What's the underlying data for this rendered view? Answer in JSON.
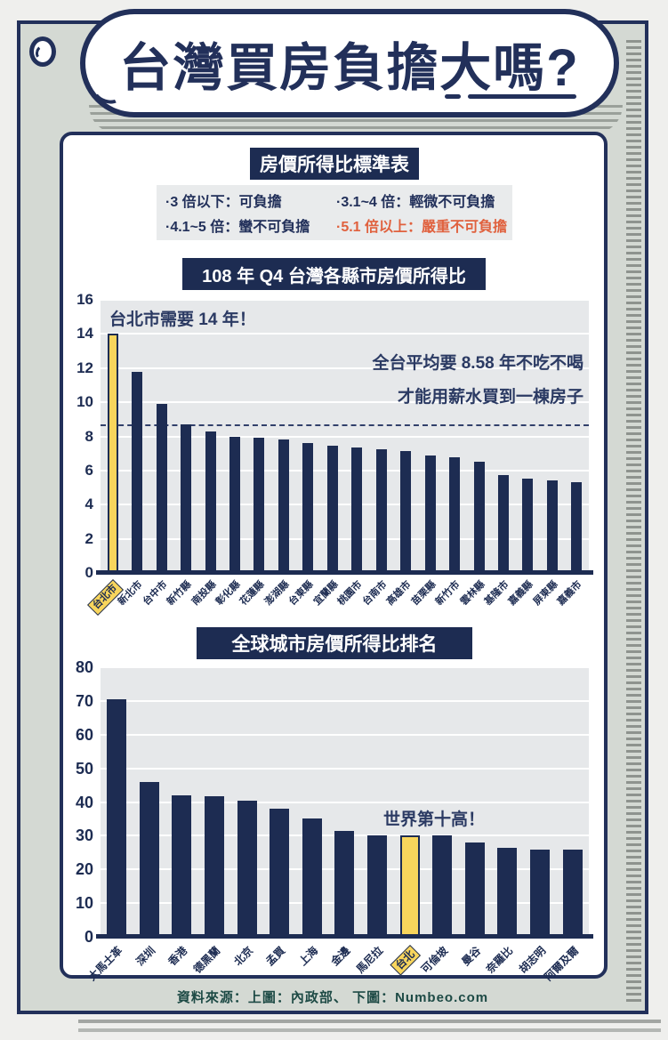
{
  "title": "台灣買房負擔大嗎?",
  "colors": {
    "navy": "#1d2c52",
    "highlight_yellow": "#f8d55c",
    "warning_orange": "#e0613e",
    "frame_bg": "#d4d9d3",
    "plot_bg": "#e6e8ea",
    "footer_teal": "#1d4a45"
  },
  "standards": {
    "header": "房價所得比標準表",
    "items": [
      {
        "text": "·3 倍以下：可負擔",
        "highlight": false
      },
      {
        "text": "·3.1~4 倍：輕微不可負擔",
        "highlight": false
      },
      {
        "text": "·4.1~5 倍：蠻不可負擔",
        "highlight": false
      },
      {
        "text": "·5.1 倍以上：嚴重不可負擔",
        "highlight": true
      }
    ]
  },
  "chart_data": [
    {
      "type": "bar",
      "title": "108 年 Q4 台灣各縣市房價所得比",
      "categories": [
        "台北市",
        "新北市",
        "台中市",
        "新竹縣",
        "南投縣",
        "彰化縣",
        "花蓮縣",
        "澎湖縣",
        "台東縣",
        "宜蘭縣",
        "桃園市",
        "台南市",
        "高雄市",
        "苗栗縣",
        "新竹市",
        "雲林縣",
        "基隆市",
        "嘉義縣",
        "屏東縣",
        "嘉義市"
      ],
      "values": [
        14.0,
        11.8,
        9.9,
        8.7,
        8.3,
        8.0,
        7.9,
        7.8,
        7.6,
        7.45,
        7.35,
        7.25,
        7.15,
        6.9,
        6.75,
        6.5,
        5.75,
        5.55,
        5.4,
        5.3
      ],
      "highlight_index": 0,
      "average_line": 8.58,
      "annotations": [
        "台北市需要 14 年！",
        "全台平均要 8.58 年不吃不喝",
        "才能用薪水買到一棟房子"
      ],
      "ylim": [
        0,
        16
      ],
      "yticks": [
        0,
        2,
        4,
        6,
        8,
        10,
        12,
        14,
        16
      ],
      "grid": true,
      "legend": "none"
    },
    {
      "type": "bar",
      "title": "全球城市房價所得比排名",
      "categories": [
        "大馬士革",
        "深圳",
        "香港",
        "德黑蘭",
        "北京",
        "孟買",
        "上海",
        "金邊",
        "馬尼拉",
        "台北",
        "可倫坡",
        "曼谷",
        "奈羅比",
        "胡志明",
        "阿爾及爾"
      ],
      "values": [
        70.5,
        46,
        42,
        41.8,
        40.5,
        38,
        35,
        31.5,
        30,
        30,
        30,
        28,
        26.5,
        26,
        26
      ],
      "highlight_index": 9,
      "annotations": [
        "世界第十高！"
      ],
      "ylim": [
        0,
        80
      ],
      "yticks": [
        0,
        10,
        20,
        30,
        40,
        50,
        60,
        70,
        80
      ],
      "grid": true,
      "legend": "none"
    }
  ],
  "footer": "資料來源：上圖：內政部、 下圖：Numbeo.com"
}
